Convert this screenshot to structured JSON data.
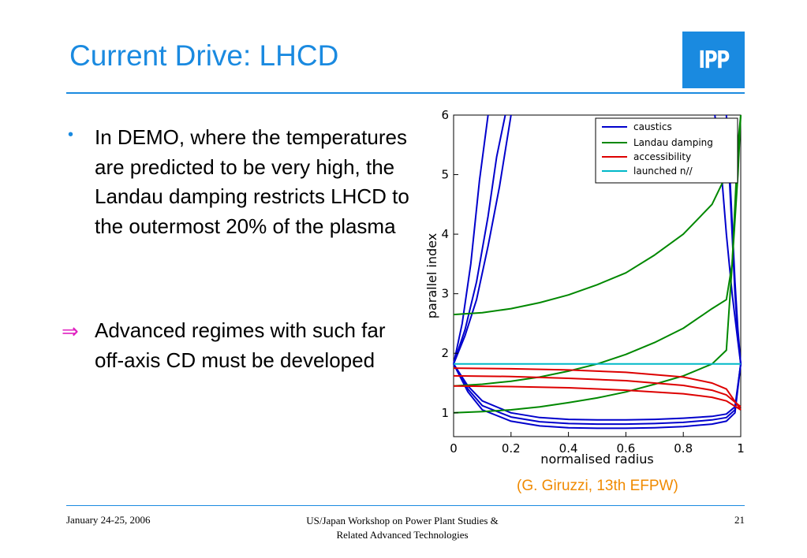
{
  "slide": {
    "title": "Current Drive: LHCD",
    "logo_text": "IPP",
    "bullets": [
      {
        "marker": "•",
        "text": "In DEMO, where the temperatures are predicted to be very high, the Landau damping restricts LHCD to the outermost 20% of the plasma"
      },
      {
        "marker": "⇒",
        "text": "Advanced regimes with such far off-axis CD must be developed"
      }
    ],
    "citation": "(G. Giruzzi, 13th EFPW)",
    "footer": {
      "date": "January 24-25, 2006",
      "event_line1": "US/Japan Workshop on Power Plant Studies &",
      "event_line2": "Related Advanced Technologies",
      "page": "21"
    },
    "colors": {
      "accent": "#1a8ae0",
      "citation": "#f08a00",
      "arrow": "#e020c0"
    }
  },
  "chart_data": {
    "type": "line",
    "title": "",
    "xlabel": "normalised radius",
    "ylabel": "parallel index",
    "xlim": [
      0,
      1
    ],
    "ylim": [
      0.6,
      6
    ],
    "xticks": [
      "0",
      "0.2",
      "0.4",
      "0.6",
      "0.8",
      "1"
    ],
    "yticks": [
      "1",
      "2",
      "3",
      "4",
      "5",
      "6"
    ],
    "legend_position": "top-right",
    "legend": [
      {
        "name": "caustics",
        "color": "#0000cc"
      },
      {
        "name": "Landau damping",
        "color": "#008800"
      },
      {
        "name": "accessibility",
        "color": "#dd0000"
      },
      {
        "name": "launched n//",
        "color": "#00b8c8"
      }
    ],
    "series": [
      {
        "group": "caustics",
        "color": "#0000cc",
        "x": [
          0,
          0.03,
          0.06,
          0.09,
          0.12
        ],
        "y": [
          1.82,
          2.5,
          3.5,
          4.9,
          6.0
        ]
      },
      {
        "group": "caustics",
        "color": "#0000cc",
        "x": [
          0,
          0.04,
          0.08,
          0.12,
          0.15,
          0.18
        ],
        "y": [
          1.82,
          2.4,
          3.2,
          4.3,
          5.3,
          6.0
        ]
      },
      {
        "group": "caustics",
        "color": "#0000cc",
        "x": [
          0,
          0.04,
          0.08,
          0.12,
          0.16,
          0.2
        ],
        "y": [
          1.82,
          2.3,
          2.9,
          3.8,
          4.8,
          6.0
        ]
      },
      {
        "group": "caustics",
        "color": "#0000cc",
        "x": [
          0.91,
          0.93,
          0.95,
          0.97,
          0.99,
          1.0
        ],
        "y": [
          6.0,
          5.2,
          4.0,
          3.0,
          2.2,
          1.82
        ]
      },
      {
        "group": "caustics",
        "color": "#0000cc",
        "x": [
          0.95,
          0.96,
          0.97,
          0.98,
          0.99,
          1.0
        ],
        "y": [
          6.0,
          5.0,
          4.0,
          3.0,
          2.3,
          1.82
        ]
      },
      {
        "group": "caustics",
        "color": "#0000cc",
        "x": [
          0.96,
          0.97,
          0.98,
          0.99,
          1.0
        ],
        "y": [
          5.2,
          4.2,
          3.2,
          2.4,
          1.82
        ]
      },
      {
        "group": "caustics",
        "color": "#0000cc",
        "x": [
          0,
          0.05,
          0.1,
          0.2,
          0.3,
          0.4,
          0.5,
          0.6,
          0.7,
          0.8,
          0.9,
          0.95,
          0.98,
          1.0
        ],
        "y": [
          1.82,
          1.45,
          1.2,
          1.0,
          0.92,
          0.89,
          0.88,
          0.88,
          0.89,
          0.91,
          0.94,
          0.98,
          1.1,
          1.82
        ]
      },
      {
        "group": "caustics",
        "color": "#0000cc",
        "x": [
          0,
          0.05,
          0.1,
          0.2,
          0.3,
          0.4,
          0.5,
          0.6,
          0.7,
          0.8,
          0.9,
          0.95,
          0.98,
          1.0
        ],
        "y": [
          1.82,
          1.4,
          1.12,
          0.93,
          0.85,
          0.82,
          0.81,
          0.81,
          0.82,
          0.84,
          0.88,
          0.92,
          1.05,
          1.82
        ]
      },
      {
        "group": "caustics",
        "color": "#0000cc",
        "x": [
          0,
          0.05,
          0.1,
          0.2,
          0.3,
          0.4,
          0.5,
          0.6,
          0.7,
          0.8,
          0.9,
          0.95,
          0.98,
          1.0
        ],
        "y": [
          1.82,
          1.35,
          1.05,
          0.86,
          0.78,
          0.75,
          0.74,
          0.74,
          0.75,
          0.77,
          0.81,
          0.86,
          1.0,
          1.82
        ]
      },
      {
        "group": "Landau damping",
        "color": "#008800",
        "x": [
          0,
          0.1,
          0.2,
          0.3,
          0.4,
          0.5,
          0.6,
          0.7,
          0.8,
          0.9,
          0.95
        ],
        "y": [
          2.65,
          2.68,
          2.75,
          2.85,
          2.98,
          3.15,
          3.35,
          3.65,
          4.0,
          4.5,
          5.0
        ]
      },
      {
        "group": "Landau damping",
        "color": "#008800",
        "x": [
          0,
          0.1,
          0.2,
          0.3,
          0.4,
          0.5,
          0.6,
          0.7,
          0.8,
          0.9,
          0.95,
          0.97,
          0.99,
          1.0
        ],
        "y": [
          1.45,
          1.48,
          1.53,
          1.6,
          1.7,
          1.82,
          1.98,
          2.18,
          2.42,
          2.75,
          2.9,
          3.5,
          5.0,
          6.0
        ]
      },
      {
        "group": "Landau damping",
        "color": "#008800",
        "x": [
          0,
          0.1,
          0.2,
          0.3,
          0.4,
          0.5,
          0.6,
          0.7,
          0.8,
          0.9,
          0.95,
          0.97,
          0.99,
          1.0
        ],
        "y": [
          1.0,
          1.02,
          1.05,
          1.1,
          1.17,
          1.25,
          1.35,
          1.48,
          1.62,
          1.82,
          2.05,
          3.5,
          5.5,
          6.0
        ]
      },
      {
        "group": "accessibility",
        "color": "#dd0000",
        "x": [
          0,
          0.2,
          0.4,
          0.6,
          0.8,
          0.9,
          0.95,
          1.0
        ],
        "y": [
          1.75,
          1.74,
          1.72,
          1.68,
          1.6,
          1.5,
          1.4,
          1.05
        ]
      },
      {
        "group": "accessibility",
        "color": "#dd0000",
        "x": [
          0,
          0.2,
          0.4,
          0.6,
          0.8,
          0.9,
          0.95,
          1.0
        ],
        "y": [
          1.62,
          1.61,
          1.58,
          1.54,
          1.46,
          1.38,
          1.3,
          1.1
        ]
      },
      {
        "group": "accessibility",
        "color": "#dd0000",
        "x": [
          0,
          0.2,
          0.4,
          0.6,
          0.8,
          0.9,
          0.95,
          1.0
        ],
        "y": [
          1.45,
          1.44,
          1.42,
          1.38,
          1.32,
          1.26,
          1.2,
          1.05
        ]
      },
      {
        "group": "launched n//",
        "color": "#00b8c8",
        "x": [
          0,
          1
        ],
        "y": [
          1.82,
          1.82
        ]
      }
    ]
  }
}
